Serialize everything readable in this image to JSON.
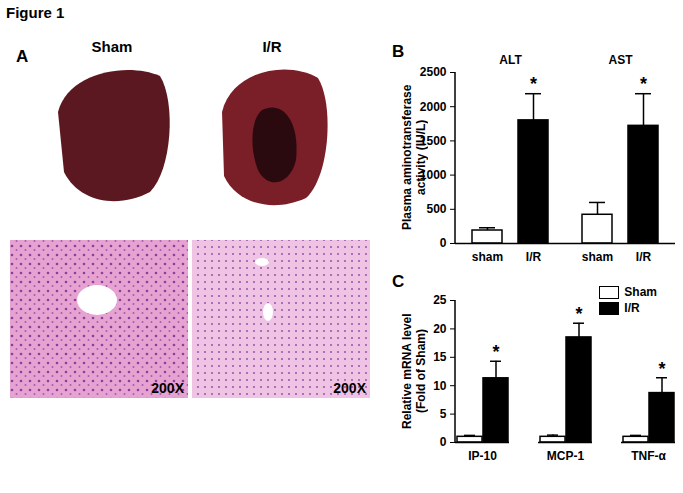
{
  "figure": {
    "title": "Figure 1",
    "panel": "A",
    "columns": [
      "Sham",
      "I/R"
    ],
    "magnification": "200X"
  },
  "chart_data": [
    {
      "panel": "B",
      "type": "bar",
      "y_label": "Plasma aminotransferase activity (IU/L)",
      "categories": [
        "ALT",
        "AST"
      ],
      "series": [
        {
          "name": "sham",
          "color": "#ffffff",
          "values": [
            190,
            420
          ],
          "errors": [
            40,
            180
          ]
        },
        {
          "name": "I/R",
          "color": "#000000",
          "values": [
            1800,
            1720
          ],
          "errors": [
            390,
            470
          ],
          "annotation": "*"
        }
      ],
      "ylim": [
        0,
        2500
      ],
      "yticks": [
        0,
        500,
        1000,
        1500,
        2000,
        2500
      ]
    },
    {
      "panel": "C",
      "type": "bar",
      "y_label": "Relative mRNA level (Fold of Sham)",
      "categories": [
        "IP-10",
        "MCP-1",
        "TNF-α"
      ],
      "series": [
        {
          "name": "Sham",
          "color": "#ffffff",
          "values": [
            1,
            1,
            1
          ],
          "errors": [
            0.25,
            0.3,
            0.25
          ]
        },
        {
          "name": "I/R",
          "color": "#000000",
          "values": [
            11.3,
            18.5,
            8.7
          ],
          "errors": [
            3,
            2.5,
            2.7
          ],
          "annotation": "*"
        }
      ],
      "legend": "top-right",
      "ylim": [
        0,
        25
      ],
      "yticks": [
        0,
        5,
        10,
        15,
        20,
        25
      ]
    }
  ]
}
